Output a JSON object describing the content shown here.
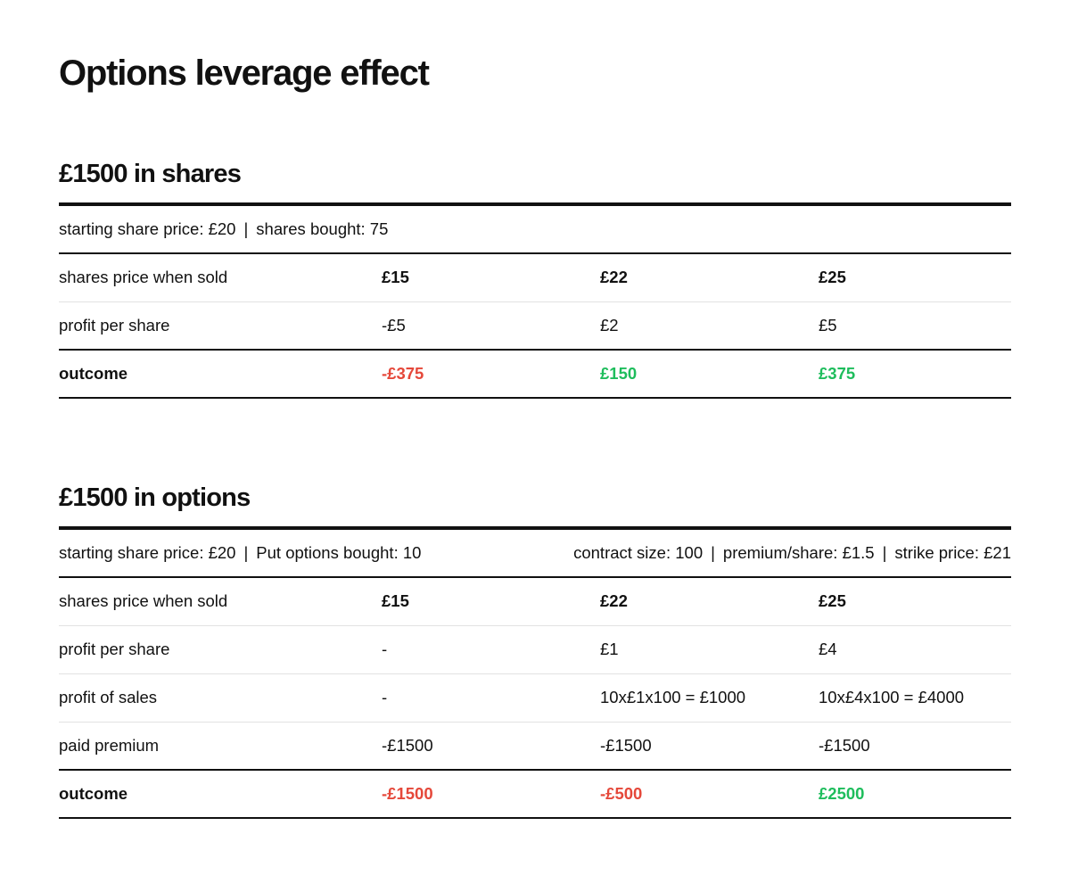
{
  "title": "Options leverage effect",
  "colors": {
    "text": "#111111",
    "negative": "#e5483a",
    "positive": "#1ebd5c",
    "divider": "#e2e2e2"
  },
  "shares_section": {
    "title": "£1500 in shares",
    "info": {
      "starting_price": "starting share price: £20",
      "separator": "|",
      "shares_bought": "shares bought: 75"
    },
    "rows": {
      "price_when_sold": {
        "label": "shares price when sold",
        "values": [
          "£15",
          "£22",
          "£25"
        ]
      },
      "profit_per_share": {
        "label": "profit per share",
        "values": [
          "-£5",
          "£2",
          "£5"
        ]
      },
      "outcome": {
        "label": "outcome",
        "values": [
          "-£375",
          "£150",
          "£375"
        ]
      }
    }
  },
  "options_section": {
    "title": "£1500 in options",
    "info": {
      "starting_price": "starting share price: £20",
      "separator": "|",
      "options_bought": "Put options bought: 10",
      "contract_size": "contract size: 100",
      "premium": "premium/share: £1.5",
      "strike": "strike price: £21"
    },
    "rows": {
      "price_when_sold": {
        "label": "shares price when sold",
        "values": [
          "£15",
          "£22",
          "£25"
        ]
      },
      "profit_per_share": {
        "label": "profit per share",
        "values": [
          "-",
          "£1",
          "£4"
        ]
      },
      "profit_of_sales": {
        "label": "profit of sales",
        "values": [
          "-",
          "10x£1x100 = £1000",
          "10x£4x100 = £4000"
        ]
      },
      "paid_premium": {
        "label": "paid premium",
        "values": [
          "-£1500",
          "-£1500",
          "-£1500"
        ]
      },
      "outcome": {
        "label": "outcome",
        "values": [
          "-£1500",
          "-£500",
          "£2500"
        ]
      }
    }
  }
}
